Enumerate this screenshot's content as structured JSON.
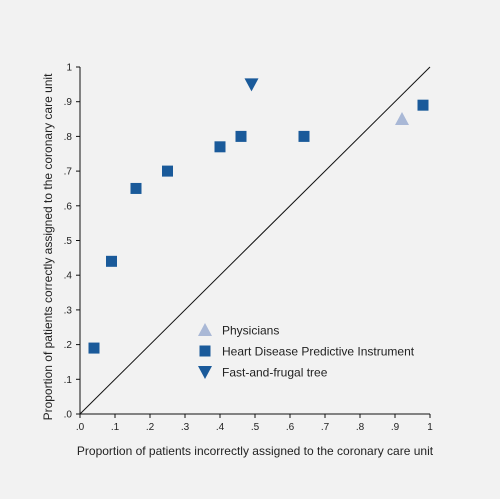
{
  "chart_data": {
    "type": "scatter",
    "xlabel": "Proportion of patients incorrectly assigned to the coronary care unit",
    "ylabel": "Proportion of patients correctly assigned to the coronary care unit",
    "xlim": [
      0,
      1
    ],
    "ylim": [
      0,
      1
    ],
    "x_ticks": [
      ".0",
      ".1",
      ".2",
      ".3",
      ".4",
      ".5",
      ".6",
      ".7",
      ".8",
      ".9",
      "1"
    ],
    "y_ticks": [
      ".0",
      ".1",
      ".2",
      ".3",
      ".4",
      ".5",
      ".6",
      ".7",
      ".8",
      ".9",
      "1"
    ],
    "grid": false,
    "legend_position": "lower-right",
    "diagonal_reference_line": true,
    "series": [
      {
        "name": "Physicians",
        "marker": "triangle-up",
        "color": "#a9b8d6",
        "points": [
          {
            "x": 0.92,
            "y": 0.85
          }
        ]
      },
      {
        "name": "Heart Disease Predictive Instrument",
        "marker": "square",
        "color": "#1a5a9a",
        "points": [
          {
            "x": 0.04,
            "y": 0.19
          },
          {
            "x": 0.09,
            "y": 0.44
          },
          {
            "x": 0.16,
            "y": 0.65
          },
          {
            "x": 0.25,
            "y": 0.7
          },
          {
            "x": 0.4,
            "y": 0.77
          },
          {
            "x": 0.46,
            "y": 0.8
          },
          {
            "x": 0.64,
            "y": 0.8
          },
          {
            "x": 0.98,
            "y": 0.89
          }
        ]
      },
      {
        "name": "Fast-and-frugal tree",
        "marker": "triangle-down",
        "color": "#1a5a9a",
        "points": [
          {
            "x": 0.49,
            "y": 0.95
          }
        ]
      }
    ]
  }
}
